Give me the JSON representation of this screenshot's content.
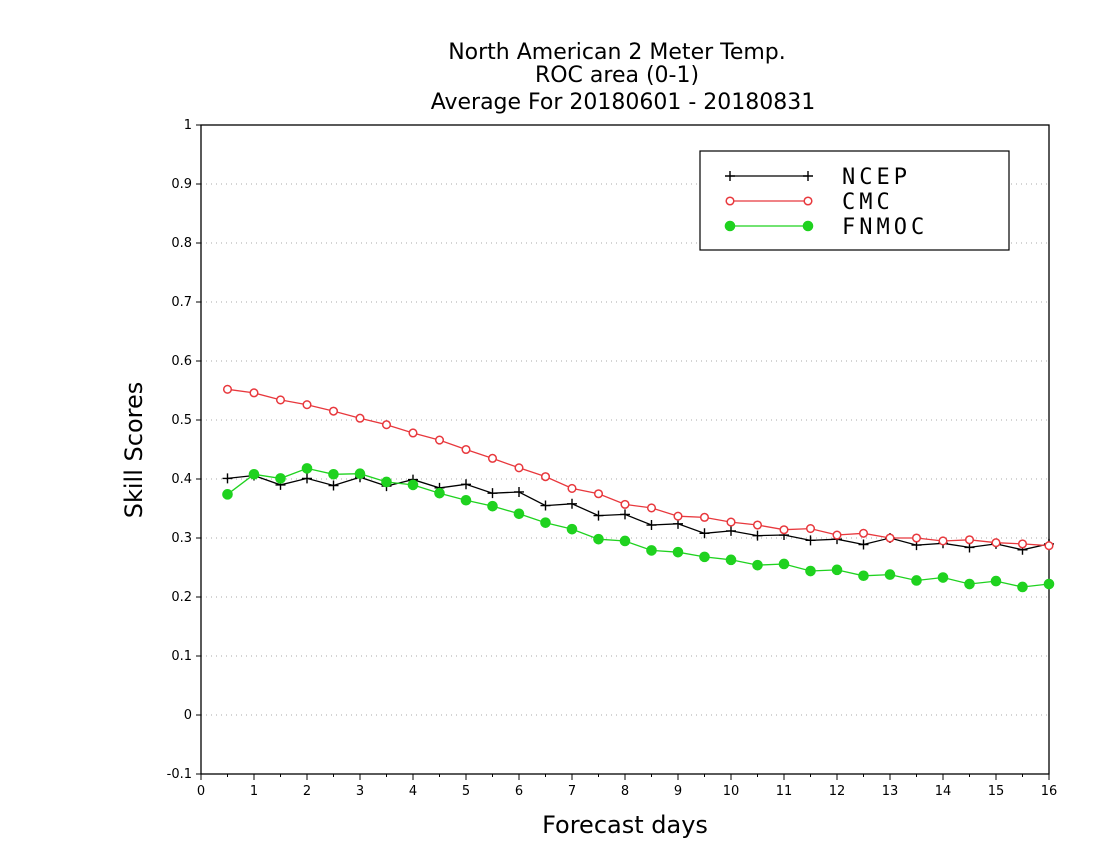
{
  "chart_data": {
    "type": "line",
    "title_lines": [
      "North American 2 Meter Temp.",
      "ROC area (0-1)",
      "Average For 20180601 - 20180831"
    ],
    "xlabel": "Forecast days",
    "ylabel": "Skill Scores",
    "xlim": [
      0,
      16
    ],
    "ylim": [
      -0.1,
      1
    ],
    "x_ticks": [
      0,
      1,
      2,
      3,
      4,
      5,
      6,
      7,
      8,
      9,
      10,
      11,
      12,
      13,
      14,
      15,
      16
    ],
    "x_tick_labels": [
      "0",
      "1",
      "2",
      "3",
      "4",
      "5",
      "6",
      "7",
      "8",
      "9",
      "10",
      "11",
      "12",
      "13",
      "14",
      "15",
      "16"
    ],
    "y_ticks": [
      -0.1,
      0,
      0.1,
      0.2,
      0.3,
      0.4,
      0.5,
      0.6,
      0.7,
      0.8,
      0.9,
      1
    ],
    "y_tick_labels": [
      "-0.1",
      "0",
      "0.1",
      "0.2",
      "0.3",
      "0.4",
      "0.5",
      "0.6",
      "0.7",
      "0.8",
      "0.9",
      "1"
    ],
    "grid": "horizontal dotted",
    "legend_position": "top-right",
    "x": [
      0.5,
      1,
      1.5,
      2,
      2.5,
      3,
      3.5,
      4,
      4.5,
      5,
      5.5,
      6,
      6.5,
      7,
      7.5,
      8,
      8.5,
      9,
      9.5,
      10,
      10.5,
      11,
      11.5,
      12,
      12.5,
      13,
      13.5,
      14,
      14.5,
      15,
      15.5,
      16
    ],
    "series": [
      {
        "name": "NCEP",
        "color": "#000000",
        "marker": "plus",
        "values": [
          0.401,
          0.406,
          0.39,
          0.401,
          0.389,
          0.403,
          0.388,
          0.399,
          0.385,
          0.391,
          0.376,
          0.378,
          0.355,
          0.358,
          0.338,
          0.34,
          0.322,
          0.324,
          0.308,
          0.312,
          0.304,
          0.305,
          0.296,
          0.298,
          0.289,
          0.3,
          0.288,
          0.291,
          0.284,
          0.29,
          0.28,
          0.29
        ]
      },
      {
        "name": "CMC",
        "color": "#e8383d",
        "marker": "open-circle",
        "values": [
          0.552,
          0.546,
          0.534,
          0.526,
          0.515,
          0.503,
          0.492,
          0.478,
          0.466,
          0.45,
          0.435,
          0.419,
          0.404,
          0.384,
          0.375,
          0.357,
          0.351,
          0.337,
          0.335,
          0.327,
          0.322,
          0.314,
          0.316,
          0.305,
          0.308,
          0.3,
          0.3,
          0.295,
          0.297,
          0.292,
          0.29,
          0.287
        ]
      },
      {
        "name": "FNMOC",
        "color": "#1fd21f",
        "marker": "filled-circle",
        "values": [
          0.374,
          0.408,
          0.401,
          0.418,
          0.408,
          0.409,
          0.395,
          0.39,
          0.376,
          0.364,
          0.354,
          0.341,
          0.326,
          0.315,
          0.298,
          0.295,
          0.279,
          0.276,
          0.268,
          0.263,
          0.254,
          0.256,
          0.244,
          0.246,
          0.236,
          0.238,
          0.228,
          0.233,
          0.222,
          0.227,
          0.217,
          0.222
        ]
      }
    ]
  }
}
